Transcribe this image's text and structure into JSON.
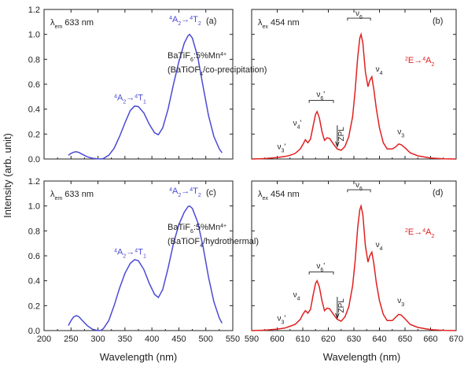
{
  "axes_labels": {
    "ylabel": "Intensity (arb. unit)",
    "xlabel_left": "Wavelength (nm)",
    "xlabel_right": "Wavelength (nm)"
  },
  "colors": {
    "excitation": "#4a4ad6",
    "emission": "#e02020",
    "axis": "#222222"
  },
  "chart_data": [
    {
      "id": "a",
      "type": "line",
      "panel_label": "(a)",
      "monitor": {
        "symbol": "λ",
        "sub": "em",
        "value": "633 nm"
      },
      "series": [
        {
          "values": [
            [
              245,
              0.03
            ],
            [
              250,
              0.045
            ],
            [
              255,
              0.055
            ],
            [
              260,
              0.058
            ],
            [
              265,
              0.052
            ],
            [
              270,
              0.04
            ],
            [
              280,
              0.018
            ],
            [
              290,
              0.006
            ],
            [
              300,
              0.001
            ],
            [
              305,
              0.0
            ],
            [
              310,
              0.004
            ],
            [
              320,
              0.03
            ],
            [
              330,
              0.085
            ],
            [
              340,
              0.18
            ],
            [
              350,
              0.29
            ],
            [
              360,
              0.39
            ],
            [
              368,
              0.425
            ],
            [
              375,
              0.42
            ],
            [
              385,
              0.37
            ],
            [
              395,
              0.28
            ],
            [
              405,
              0.21
            ],
            [
              412,
              0.195
            ],
            [
              420,
              0.25
            ],
            [
              430,
              0.4
            ],
            [
              440,
              0.6
            ],
            [
              450,
              0.78
            ],
            [
              460,
              0.93
            ],
            [
              467,
              0.99
            ],
            [
              470,
              1.0
            ],
            [
              475,
              0.97
            ],
            [
              485,
              0.82
            ],
            [
              495,
              0.58
            ],
            [
              505,
              0.35
            ],
            [
              515,
              0.18
            ],
            [
              525,
              0.08
            ],
            [
              530,
              0.05
            ]
          ]
        }
      ],
      "xlim": [
        200,
        550
      ],
      "ylim": [
        0,
        1.2
      ],
      "xticks": [
        200,
        250,
        300,
        350,
        400,
        450,
        500,
        550
      ],
      "yticks": [
        0.0,
        0.2,
        0.4,
        0.6,
        0.8,
        1.0,
        1.2
      ],
      "ytick_labels": [
        "0.0",
        "0.2",
        "0.4",
        "0.6",
        "0.8",
        "1.0",
        "1.2"
      ],
      "annotations": {
        "t1": {
          "a": "A",
          "n1": "4",
          "n2": "4",
          "a2": "T",
          "sub": "1"
        },
        "t2": {
          "a": "A",
          "n1": "4",
          "n2": "4",
          "a2": "T",
          "sub": "2"
        },
        "sample_line1": "BaTiF",
        "sample_sub": "6",
        "sample_line1b": ":5%Mn",
        "sample_sup": "4+",
        "sample_line2": "(BaTiOF",
        "sample_line2_sub": "4",
        "sample_line2b": "/co-precipitation)"
      }
    },
    {
      "id": "b",
      "type": "line",
      "panel_label": "(b)",
      "monitor": {
        "symbol": "λ",
        "sub": "ex",
        "value": "454 nm"
      },
      "series": [
        {
          "values": [
            [
              590,
              0.0
            ],
            [
              595,
              0.003
            ],
            [
              600,
              0.012
            ],
            [
              603,
              0.02
            ],
            [
              605,
              0.03
            ],
            [
              607,
              0.045
            ],
            [
              609,
              0.08
            ],
            [
              610,
              0.115
            ],
            [
              611,
              0.155
            ],
            [
              612,
              0.13
            ],
            [
              613,
              0.16
            ],
            [
              614,
              0.26
            ],
            [
              615,
              0.36
            ],
            [
              615.6,
              0.38
            ],
            [
              616.5,
              0.33
            ],
            [
              617.5,
              0.22
            ],
            [
              618.5,
              0.15
            ],
            [
              619.5,
              0.17
            ],
            [
              620.5,
              0.165
            ],
            [
              622,
              0.12
            ],
            [
              623.5,
              0.08
            ],
            [
              625,
              0.07
            ],
            [
              626.5,
              0.1
            ],
            [
              628,
              0.18
            ],
            [
              629.5,
              0.34
            ],
            [
              630.5,
              0.55
            ],
            [
              631.5,
              0.82
            ],
            [
              632.3,
              0.97
            ],
            [
              632.8,
              1.0
            ],
            [
              633.5,
              0.93
            ],
            [
              634.5,
              0.7
            ],
            [
              635.5,
              0.58
            ],
            [
              636.2,
              0.63
            ],
            [
              637,
              0.66
            ],
            [
              637.8,
              0.56
            ],
            [
              638.8,
              0.4
            ],
            [
              640,
              0.25
            ],
            [
              641.5,
              0.13
            ],
            [
              643,
              0.08
            ],
            [
              645,
              0.08
            ],
            [
              646.5,
              0.1
            ],
            [
              647.5,
              0.12
            ],
            [
              648.5,
              0.115
            ],
            [
              650,
              0.09
            ],
            [
              652,
              0.05
            ],
            [
              655,
              0.025
            ],
            [
              660,
              0.008
            ],
            [
              665,
              0.002
            ],
            [
              670,
              0.0
            ]
          ]
        }
      ],
      "xlim": [
        590,
        670
      ],
      "ylim": [
        0,
        1.2
      ],
      "xticks": [
        590,
        600,
        610,
        620,
        630,
        640,
        650,
        660,
        670
      ],
      "annotations": {
        "transition": {
          "n1": "2",
          "a": "E",
          "n2": "4",
          "a2": "A",
          "sub": "2"
        },
        "nu6": {
          "sym": "ν",
          "sub": "6"
        },
        "nu6p": {
          "sym": "ν",
          "sub": "6",
          "prime": "'"
        },
        "nu4": {
          "sym": "ν",
          "sub": "4"
        },
        "nu4p": {
          "sym": "ν",
          "sub": "4",
          "prime": "'"
        },
        "nu3": {
          "sym": "ν",
          "sub": "3"
        },
        "nu3p": {
          "sym": "ν",
          "sub": "3",
          "prime": "'"
        },
        "zpl": "ZPL"
      }
    },
    {
      "id": "c",
      "type": "line",
      "panel_label": "(c)",
      "monitor": {
        "symbol": "λ",
        "sub": "em",
        "value": "633 nm"
      },
      "series": [
        {
          "values": [
            [
              245,
              0.04
            ],
            [
              250,
              0.08
            ],
            [
              255,
              0.11
            ],
            [
              260,
              0.12
            ],
            [
              265,
              0.11
            ],
            [
              270,
              0.085
            ],
            [
              280,
              0.04
            ],
            [
              290,
              0.01
            ],
            [
              300,
              0.0
            ],
            [
              305,
              0.001
            ],
            [
              310,
              0.015
            ],
            [
              320,
              0.08
            ],
            [
              330,
              0.2
            ],
            [
              340,
              0.34
            ],
            [
              350,
              0.46
            ],
            [
              360,
              0.54
            ],
            [
              368,
              0.57
            ],
            [
              375,
              0.56
            ],
            [
              385,
              0.49
            ],
            [
              395,
              0.38
            ],
            [
              405,
              0.29
            ],
            [
              412,
              0.265
            ],
            [
              420,
              0.33
            ],
            [
              430,
              0.5
            ],
            [
              440,
              0.7
            ],
            [
              450,
              0.85
            ],
            [
              460,
              0.95
            ],
            [
              467,
              0.995
            ],
            [
              470,
              1.0
            ],
            [
              475,
              0.98
            ],
            [
              485,
              0.87
            ],
            [
              495,
              0.67
            ],
            [
              505,
              0.43
            ],
            [
              515,
              0.23
            ],
            [
              525,
              0.1
            ],
            [
              530,
              0.06
            ]
          ]
        }
      ],
      "xlim": [
        200,
        550
      ],
      "ylim": [
        0,
        1.2
      ],
      "xticks": [
        200,
        250,
        300,
        350,
        400,
        450,
        500,
        550
      ],
      "xtick_labels": [
        "200",
        "250",
        "300",
        "350",
        "400",
        "450",
        "500",
        "550"
      ],
      "yticks": [
        0.0,
        0.2,
        0.4,
        0.6,
        0.8,
        1.0,
        1.2
      ],
      "ytick_labels": [
        "0.0",
        "0.2",
        "0.4",
        "0.6",
        "0.8",
        "1.0",
        "1.2"
      ],
      "annotations": {
        "t1": {
          "a": "A",
          "n1": "4",
          "n2": "4",
          "a2": "T",
          "sub": "1"
        },
        "t2": {
          "a": "A",
          "n1": "4",
          "n2": "4",
          "a2": "T",
          "sub": "2"
        },
        "sample_line1": "BaTiF",
        "sample_sub": "6",
        "sample_line1b": ":5%Mn",
        "sample_sup": "4+",
        "sample_line2": "(BaTiOF",
        "sample_line2_sub": "4",
        "sample_line2b": "/hydrothermal)"
      }
    },
    {
      "id": "d",
      "type": "line",
      "panel_label": "(d)",
      "monitor": {
        "symbol": "λ",
        "sub": "ex",
        "value": "454 nm"
      },
      "series": [
        {
          "values": [
            [
              590,
              0.0
            ],
            [
              595,
              0.003
            ],
            [
              600,
              0.012
            ],
            [
              603,
              0.02
            ],
            [
              605,
              0.035
            ],
            [
              607,
              0.05
            ],
            [
              609,
              0.09
            ],
            [
              610,
              0.13
            ],
            [
              611,
              0.16
            ],
            [
              612,
              0.14
            ],
            [
              613,
              0.17
            ],
            [
              614,
              0.28
            ],
            [
              615,
              0.38
            ],
            [
              615.6,
              0.4
            ],
            [
              616.5,
              0.35
            ],
            [
              617.5,
              0.24
            ],
            [
              618.5,
              0.16
            ],
            [
              619.5,
              0.18
            ],
            [
              620.5,
              0.175
            ],
            [
              622,
              0.13
            ],
            [
              623.5,
              0.09
            ],
            [
              625,
              0.075
            ],
            [
              626.5,
              0.11
            ],
            [
              628,
              0.19
            ],
            [
              629.5,
              0.36
            ],
            [
              630.5,
              0.56
            ],
            [
              631.5,
              0.83
            ],
            [
              632.3,
              0.97
            ],
            [
              632.8,
              1.0
            ],
            [
              633.5,
              0.93
            ],
            [
              634.5,
              0.68
            ],
            [
              635.5,
              0.55
            ],
            [
              636.2,
              0.6
            ],
            [
              637,
              0.63
            ],
            [
              637.8,
              0.54
            ],
            [
              638.8,
              0.38
            ],
            [
              640,
              0.24
            ],
            [
              641.5,
              0.13
            ],
            [
              643,
              0.08
            ],
            [
              645,
              0.08
            ],
            [
              646.5,
              0.11
            ],
            [
              647.5,
              0.13
            ],
            [
              648.5,
              0.125
            ],
            [
              650,
              0.095
            ],
            [
              652,
              0.05
            ],
            [
              655,
              0.025
            ],
            [
              660,
              0.008
            ],
            [
              665,
              0.002
            ],
            [
              670,
              0.0
            ]
          ]
        }
      ],
      "xlim": [
        590,
        670
      ],
      "ylim": [
        0,
        1.2
      ],
      "xticks": [
        590,
        600,
        610,
        620,
        630,
        640,
        650,
        660,
        670
      ],
      "xtick_labels": [
        "590",
        "600",
        "610",
        "620",
        "630",
        "640",
        "650",
        "660",
        "670"
      ],
      "annotations": {
        "transition": {
          "n1": "2",
          "a": "E",
          "n2": "4",
          "a2": "A",
          "sub": "2"
        },
        "nu6": {
          "sym": "ν",
          "sub": "6"
        },
        "nu6p": {
          "sym": "ν",
          "sub": "6",
          "prime": "'"
        },
        "nu4": {
          "sym": "ν",
          "sub": "4"
        },
        "nu4p": {
          "sym": "ν",
          "sub": "4",
          "prime": ""
        },
        "nu3": {
          "sym": "ν",
          "sub": "3"
        },
        "nu3p": {
          "sym": "ν",
          "sub": "3",
          "prime": "'"
        },
        "zpl": "ZPL"
      }
    }
  ]
}
